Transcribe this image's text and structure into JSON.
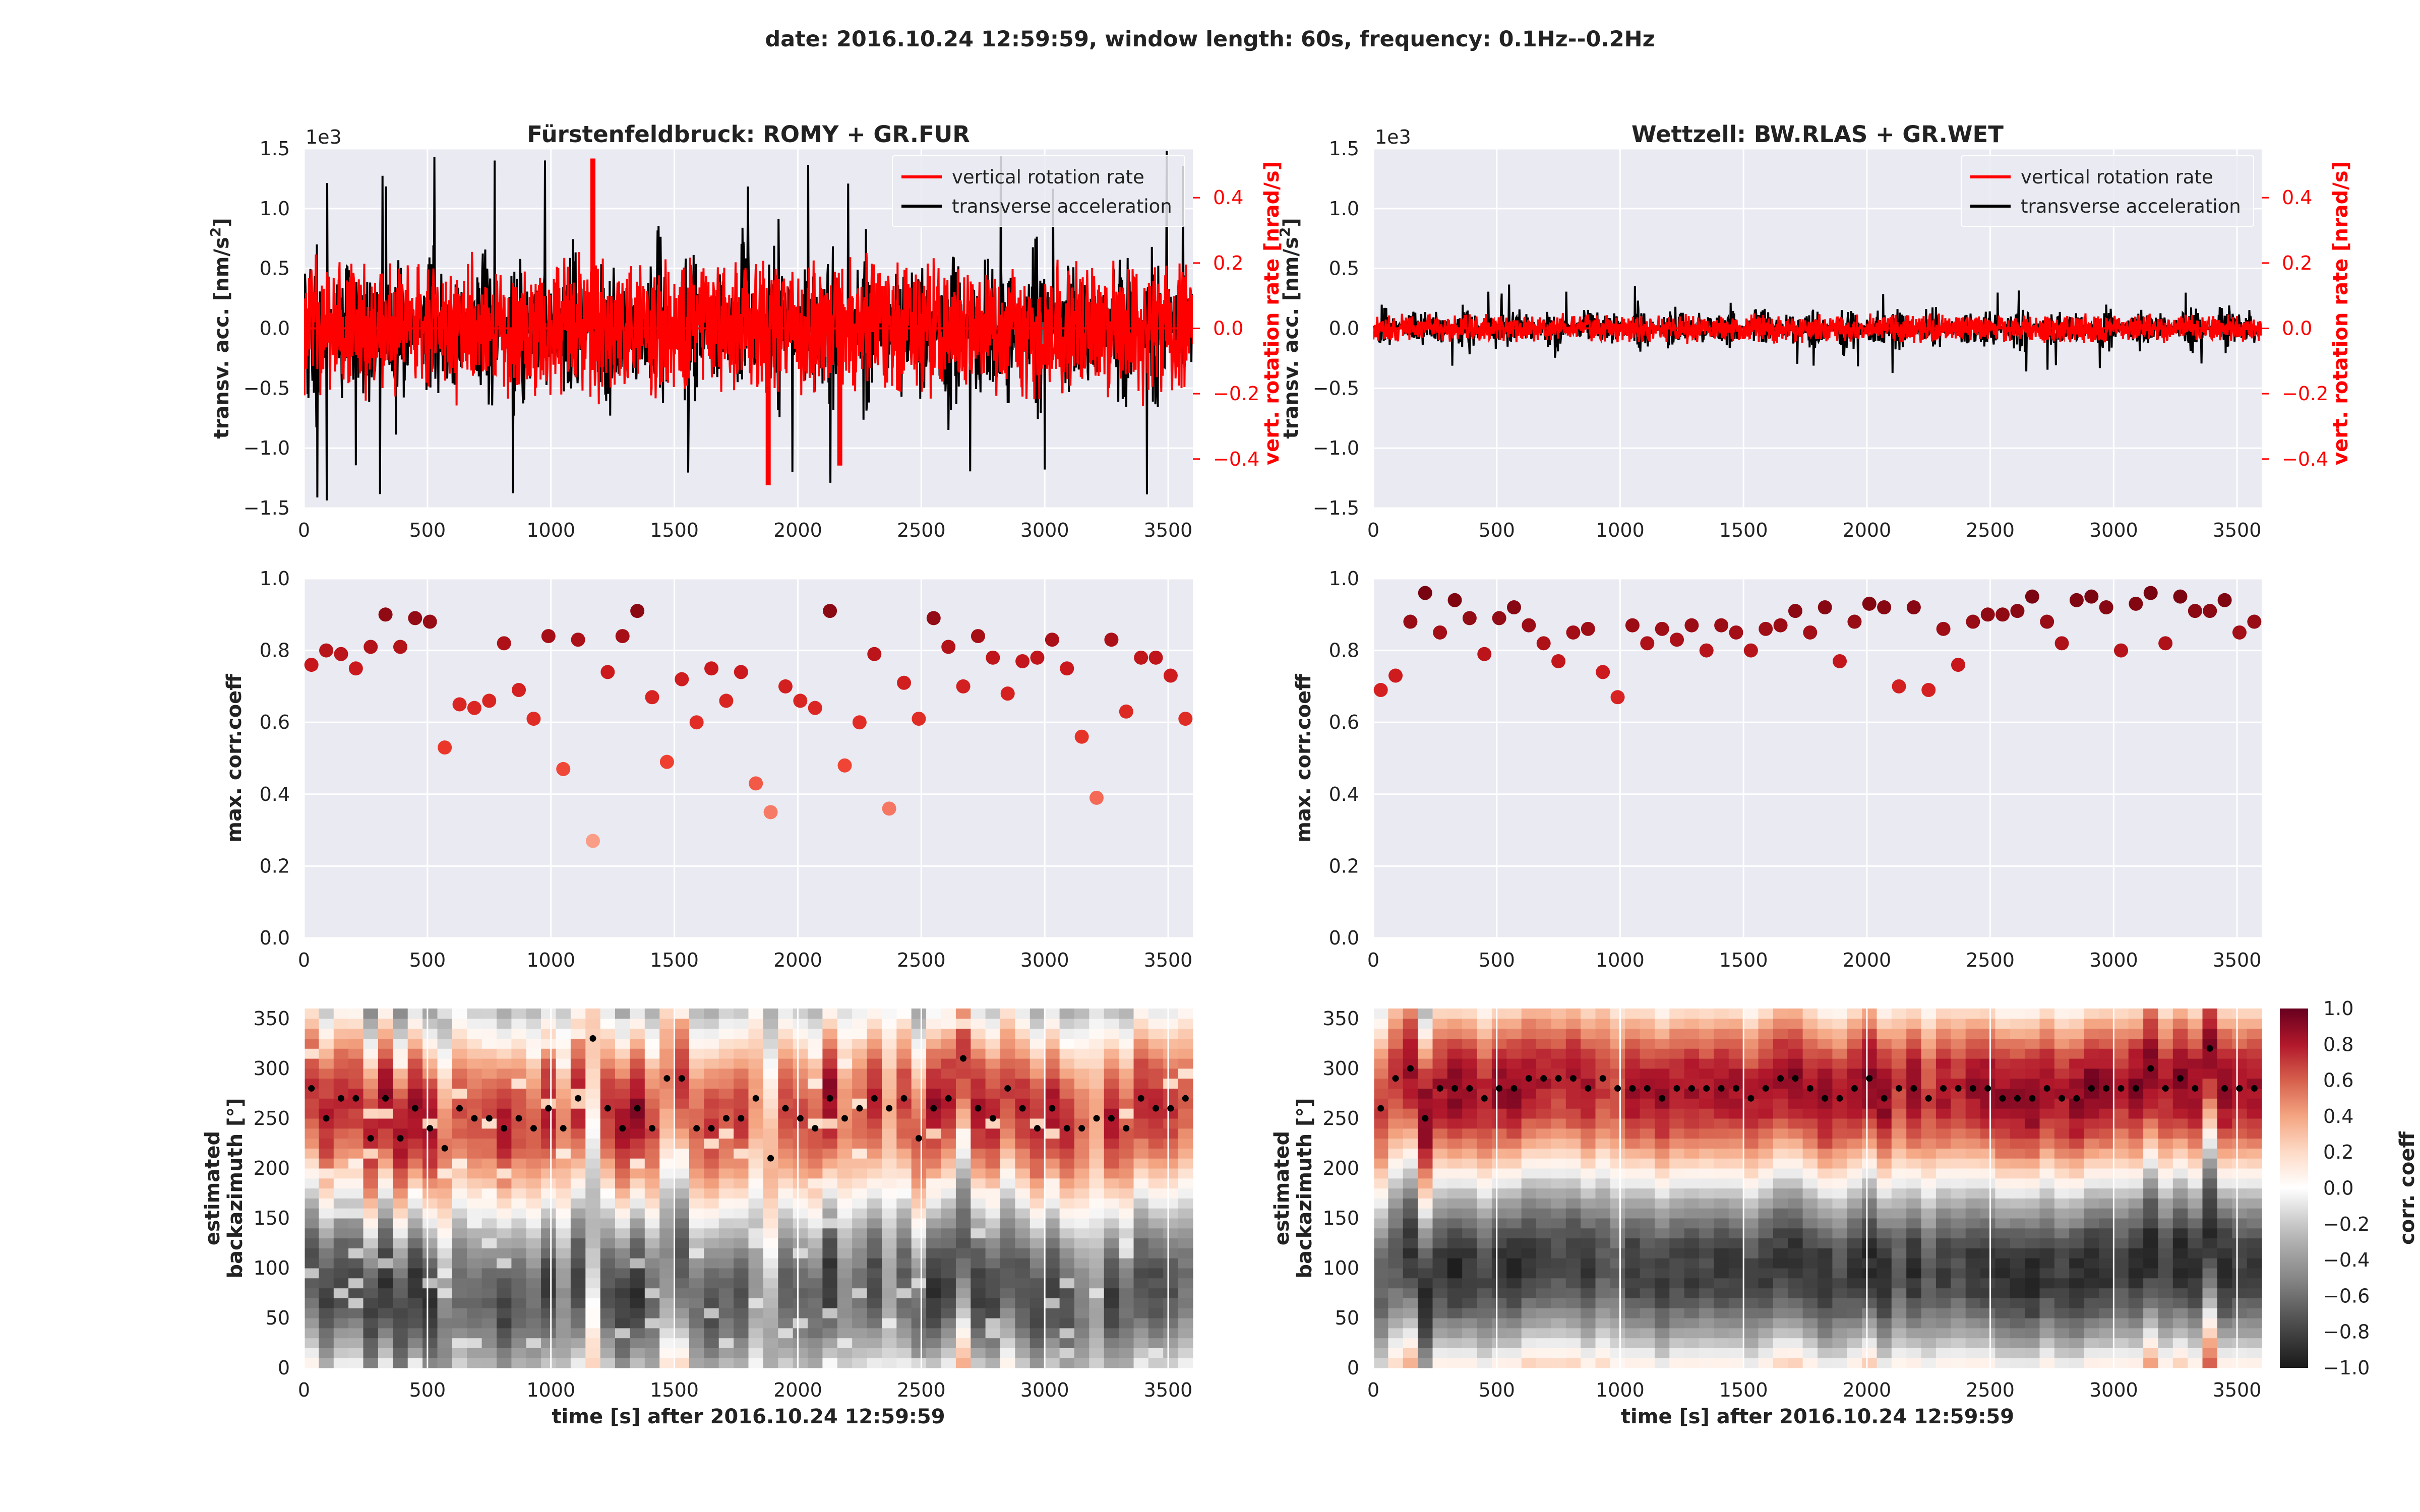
{
  "suptitle": "date: 2016.10.24 12:59:59, window length: 60s, frequency: 0.1Hz--0.2Hz",
  "colors": {
    "axes_bg": "#eaeaf2",
    "grid": "#ffffff",
    "rotation": "#ff0000",
    "acceleration": "#000000"
  },
  "panels": [
    {
      "title": "Fürstenfeldbruck: ROMY + GR.FUR",
      "trace": {
        "ylabel": "transv. acc. [nm/s²]",
        "ylabel_main": "transv. acc. [nm/s",
        "ylabel_sup": "2",
        "ylabel_end": "]",
        "y2label": "vert. rotation rate [nrad/s]",
        "offset_text": "1e3",
        "xlim": [
          0,
          3600
        ],
        "ylim": [
          -1.5,
          1.5
        ],
        "y2lim": [
          -0.55,
          0.55
        ],
        "xticks": [
          "0",
          "500",
          "1000",
          "1500",
          "2000",
          "2500",
          "3000",
          "3500"
        ],
        "yticks": [
          "1.5",
          "1.0",
          "0.5",
          "0.0",
          "−0.5",
          "−1.0",
          "−1.5"
        ],
        "y2ticks": [
          "0.4",
          "0.2",
          "0.0",
          "−0.2",
          "−0.4"
        ],
        "legend": [
          "vertical rotation rate",
          "transverse acceleration"
        ],
        "legend_loc": "upper right"
      },
      "coeff": {
        "ylabel": "max. corr.coeff",
        "xlim": [
          0,
          3600
        ],
        "ylim": [
          0,
          1
        ],
        "xticks": [
          "0",
          "500",
          "1000",
          "1500",
          "2000",
          "2500",
          "3000",
          "3500"
        ],
        "yticks": [
          "1.0",
          "0.8",
          "0.6",
          "0.4",
          "0.2",
          "0.0"
        ]
      },
      "baz": {
        "ylabel_line1": "estimated",
        "ylabel_line2": "backazimuth [°]",
        "xlabel": "time [s] after 2016.10.24 12:59:59",
        "xlim": [
          0,
          3600
        ],
        "ylim": [
          0,
          360
        ],
        "xticks": [
          "0",
          "500",
          "1000",
          "1500",
          "2000",
          "2500",
          "3000",
          "3500"
        ],
        "yticks": [
          "350",
          "300",
          "250",
          "200",
          "150",
          "100",
          "50",
          "0"
        ]
      }
    },
    {
      "title": "Wettzell: BW.RLAS + GR.WET",
      "trace": {
        "ylabel": "transv. acc. [nm/s²]",
        "ylabel_main": "transv. acc. [nm/s",
        "ylabel_sup": "2",
        "ylabel_end": "]",
        "y2label": "vert. rotation rate [nrad/s]",
        "offset_text": "1e3",
        "xlim": [
          0,
          3600
        ],
        "ylim": [
          -1.5,
          1.5
        ],
        "y2lim": [
          -0.55,
          0.55
        ],
        "xticks": [
          "0",
          "500",
          "1000",
          "1500",
          "2000",
          "2500",
          "3000",
          "3500"
        ],
        "yticks": [
          "1.5",
          "1.0",
          "0.5",
          "0.0",
          "−0.5",
          "−1.0",
          "−1.5"
        ],
        "y2ticks": [
          "0.4",
          "0.2",
          "0.0",
          "−0.2",
          "−0.4"
        ],
        "legend": [
          "vertical rotation rate",
          "transverse acceleration"
        ],
        "legend_loc": "upper right"
      },
      "coeff": {
        "ylabel": "max. corr.coeff",
        "xlim": [
          0,
          3600
        ],
        "ylim": [
          0,
          1
        ],
        "xticks": [
          "0",
          "500",
          "1000",
          "1500",
          "2000",
          "2500",
          "3000",
          "3500"
        ],
        "yticks": [
          "1.0",
          "0.8",
          "0.6",
          "0.4",
          "0.2",
          "0.0"
        ]
      },
      "baz": {
        "ylabel_line1": "estimated",
        "ylabel_line2": "backazimuth [°]",
        "xlabel": "time [s] after 2016.10.24 12:59:59",
        "xlim": [
          0,
          3600
        ],
        "ylim": [
          0,
          360
        ],
        "xticks": [
          "0",
          "500",
          "1000",
          "1500",
          "2000",
          "2500",
          "3000",
          "3500"
        ],
        "yticks": [
          "350",
          "300",
          "250",
          "200",
          "150",
          "100",
          "50",
          "0"
        ]
      }
    }
  ],
  "colorbar": {
    "label": "corr. coeff",
    "range": [
      -1,
      1
    ],
    "ticks": [
      "1.0",
      "0.8",
      "0.6",
      "0.4",
      "0.2",
      "0.0",
      "−0.2",
      "−0.4",
      "−0.6",
      "−0.8",
      "−1.0"
    ]
  },
  "chart_data": [
    {
      "type": "line",
      "panel": "Fürstenfeldbruck: ROMY + GR.FUR",
      "series": [
        {
          "name": "vertical rotation rate",
          "axis": "right",
          "units": "nrad/s",
          "amplitude_envelope": 0.2,
          "spikes": [
            {
              "x": 1170,
              "y": 0.52
            },
            {
              "x": 1880,
              "y": -0.48
            },
            {
              "x": 2170,
              "y": -0.42
            }
          ]
        },
        {
          "name": "transverse acceleration",
          "axis": "left",
          "units": "nm/s² ×1e3",
          "amplitude_envelope": 0.75,
          "peak": 1.5
        }
      ]
    },
    {
      "type": "scatter",
      "panel": "Fürstenfeldbruck: ROMY + GR.FUR",
      "ylabel": "max. corr.coeff",
      "x": [
        30,
        90,
        150,
        210,
        270,
        330,
        390,
        450,
        510,
        570,
        630,
        690,
        750,
        810,
        870,
        930,
        990,
        1050,
        1110,
        1170,
        1230,
        1290,
        1350,
        1410,
        1470,
        1530,
        1590,
        1650,
        1710,
        1770,
        1830,
        1890,
        1950,
        2010,
        2070,
        2130,
        2190,
        2250,
        2310,
        2370,
        2430,
        2490,
        2550,
        2610,
        2670,
        2730,
        2790,
        2850,
        2910,
        2970,
        3030,
        3090,
        3150,
        3210,
        3270,
        3330,
        3390,
        3450,
        3510,
        3570
      ],
      "y": [
        0.76,
        0.8,
        0.79,
        0.75,
        0.81,
        0.9,
        0.81,
        0.89,
        0.88,
        0.53,
        0.65,
        0.64,
        0.66,
        0.82,
        0.69,
        0.61,
        0.84,
        0.47,
        0.83,
        0.27,
        0.74,
        0.84,
        0.91,
        0.67,
        0.49,
        0.72,
        0.6,
        0.75,
        0.66,
        0.74,
        0.43,
        0.35,
        0.7,
        0.66,
        0.64,
        0.91,
        0.48,
        0.6,
        0.79,
        0.36,
        0.71,
        0.61,
        0.89,
        0.81,
        0.7,
        0.84,
        0.78,
        0.68,
        0.77,
        0.78,
        0.83,
        0.75,
        0.56,
        0.39,
        0.83,
        0.63,
        0.78,
        0.78,
        0.73,
        0.61
      ]
    },
    {
      "type": "heatmap",
      "panel": "Fürstenfeldbruck: ROMY + GR.FUR",
      "x_range": [
        0,
        3600
      ],
      "y_range": [
        0,
        360
      ],
      "value_range": [
        -1,
        1
      ],
      "estimated_backazimuth": [
        280,
        250,
        270,
        270,
        230,
        270,
        230,
        260,
        240,
        220,
        260,
        250,
        250,
        240,
        250,
        240,
        260,
        240,
        270,
        330,
        260,
        240,
        260,
        240,
        290,
        290,
        240,
        240,
        250,
        250,
        270,
        210,
        260,
        250,
        240,
        270,
        250,
        260,
        270,
        260,
        270,
        230,
        260,
        270,
        310,
        260,
        250,
        280,
        260,
        240,
        260,
        240,
        240,
        250,
        250,
        240,
        270,
        260,
        260,
        270
      ]
    },
    {
      "type": "line",
      "panel": "Wettzell: BW.RLAS + GR.WET",
      "series": [
        {
          "name": "vertical rotation rate",
          "axis": "right",
          "units": "nrad/s",
          "amplitude_envelope": 0.04
        },
        {
          "name": "transverse acceleration",
          "axis": "left",
          "units": "nm/s² ×1e3",
          "amplitude_envelope": 0.2,
          "peak": 0.38
        }
      ]
    },
    {
      "type": "scatter",
      "panel": "Wettzell: BW.RLAS + GR.WET",
      "ylabel": "max. corr.coeff",
      "x": [
        30,
        90,
        150,
        210,
        270,
        330,
        390,
        450,
        510,
        570,
        630,
        690,
        750,
        810,
        870,
        930,
        990,
        1050,
        1110,
        1170,
        1230,
        1290,
        1350,
        1410,
        1470,
        1530,
        1590,
        1650,
        1710,
        1770,
        1830,
        1890,
        1950,
        2010,
        2070,
        2130,
        2190,
        2250,
        2310,
        2370,
        2430,
        2490,
        2550,
        2610,
        2670,
        2730,
        2790,
        2850,
        2910,
        2970,
        3030,
        3090,
        3150,
        3210,
        3270,
        3330,
        3390,
        3450,
        3510,
        3570
      ],
      "y": [
        0.69,
        0.73,
        0.88,
        0.96,
        0.85,
        0.94,
        0.89,
        0.79,
        0.89,
        0.92,
        0.87,
        0.82,
        0.77,
        0.85,
        0.86,
        0.74,
        0.67,
        0.87,
        0.82,
        0.86,
        0.83,
        0.87,
        0.8,
        0.87,
        0.85,
        0.8,
        0.86,
        0.87,
        0.91,
        0.85,
        0.92,
        0.77,
        0.88,
        0.93,
        0.92,
        0.7,
        0.92,
        0.69,
        0.86,
        0.76,
        0.88,
        0.9,
        0.9,
        0.91,
        0.95,
        0.88,
        0.82,
        0.94,
        0.95,
        0.92,
        0.8,
        0.93,
        0.96,
        0.82,
        0.95,
        0.91,
        0.91,
        0.94,
        0.85,
        0.88
      ]
    },
    {
      "type": "heatmap",
      "panel": "Wettzell: BW.RLAS + GR.WET",
      "x_range": [
        0,
        3600
      ],
      "y_range": [
        0,
        360
      ],
      "value_range": [
        -1,
        1
      ],
      "estimated_backazimuth": [
        260,
        290,
        300,
        250,
        280,
        280,
        280,
        270,
        280,
        280,
        290,
        290,
        290,
        290,
        280,
        290,
        280,
        280,
        280,
        270,
        280,
        280,
        280,
        280,
        280,
        270,
        280,
        290,
        290,
        280,
        270,
        270,
        280,
        290,
        270,
        280,
        280,
        270,
        280,
        280,
        280,
        280,
        270,
        270,
        270,
        280,
        270,
        270,
        280,
        280,
        280,
        280,
        300,
        280,
        290,
        280,
        320,
        280,
        280,
        280
      ]
    }
  ]
}
